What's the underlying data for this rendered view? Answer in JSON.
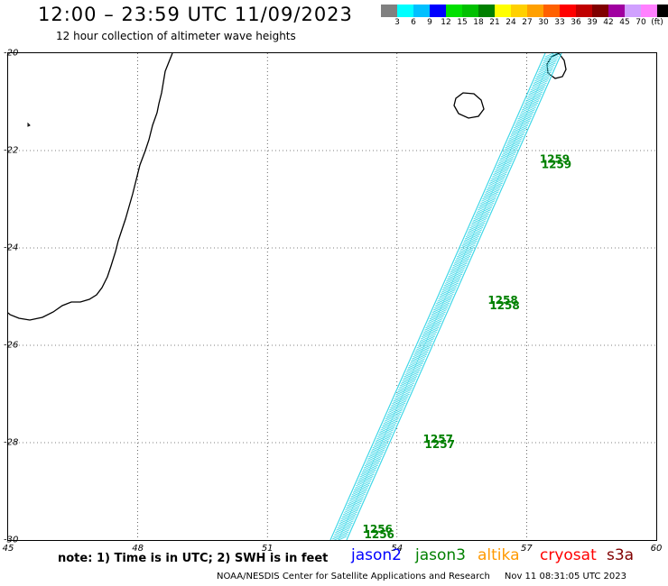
{
  "header": {
    "title": "12:00 – 23:59 UTC 11/09/2023",
    "subtitle": "12 hour collection of altimeter wave heights"
  },
  "color_scale": {
    "colors": [
      "#808080",
      "#00ffff",
      "#00c0ff",
      "#0000ff",
      "#00e000",
      "#00c000",
      "#008000",
      "#ffff00",
      "#ffd000",
      "#ffa000",
      "#ff6000",
      "#ff0000",
      "#c00000",
      "#800000",
      "#a000a0",
      "#d0a0ff",
      "#ff80ff",
      "#000000"
    ],
    "labels": [
      "3",
      "6",
      "9",
      "12",
      "15",
      "18",
      "21",
      "24",
      "27",
      "30",
      "33",
      "36",
      "39",
      "42",
      "45",
      "70",
      "(ft)"
    ]
  },
  "map": {
    "lon_range": [
      45,
      60
    ],
    "lat_range": [
      -30,
      -20
    ],
    "x_ticks": [
      "45",
      "48",
      "51",
      "54",
      "57",
      "60"
    ],
    "y_ticks": [
      "-20",
      "-22",
      "-24",
      "-26",
      "-28",
      "-30"
    ],
    "track_color": "#40d8e8",
    "time_label_color": "#008000",
    "time_labels": [
      {
        "text": "1259",
        "lon": 57.3,
        "lat": -22.25
      },
      {
        "text": "1258",
        "lon": 56.1,
        "lat": -25.15
      },
      {
        "text": "1257",
        "lon": 54.6,
        "lat": -28.0
      },
      {
        "text": "1256",
        "lon": 53.2,
        "lat": -29.85
      }
    ]
  },
  "footer": {
    "note": "note: 1) Time is in UTC; 2) SWH is in feet",
    "satellites": [
      {
        "name": "jason2",
        "color": "#0000ff"
      },
      {
        "name": "jason3",
        "color": "#008000"
      },
      {
        "name": "altika",
        "color": "#ff9900"
      },
      {
        "name": "cryosat",
        "color": "#ff0000"
      },
      {
        "name": "s3a",
        "color": "#800000"
      }
    ],
    "credit": "NOAA/NESDIS Center for Satellite Applications and Research",
    "timestamp": "Nov 11 08:31:05 UTC 2023"
  }
}
